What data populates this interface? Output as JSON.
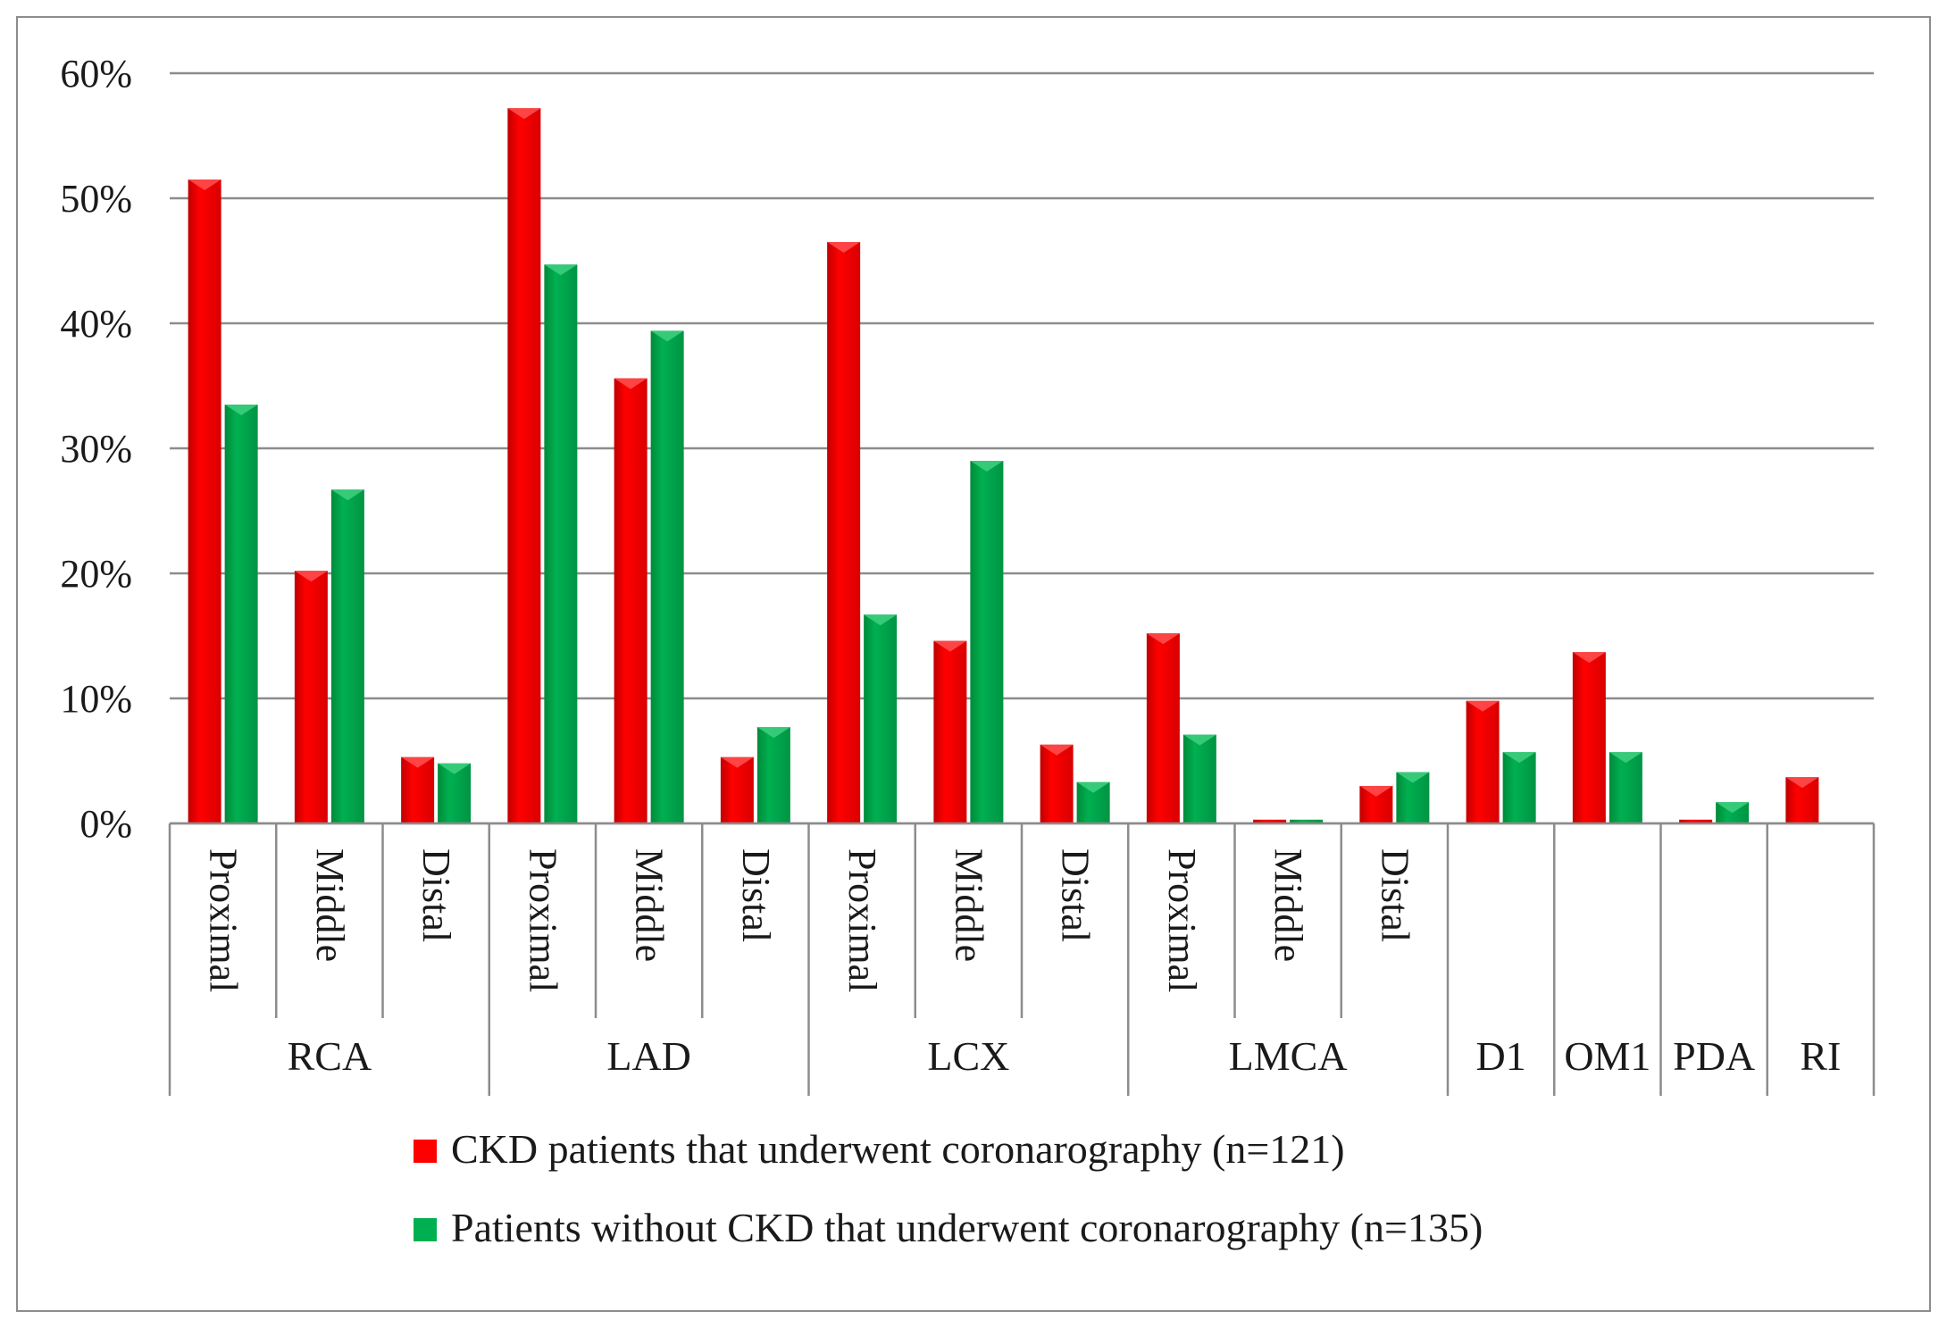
{
  "chart_data": {
    "type": "bar",
    "title": "",
    "xlabel": "",
    "ylabel": "",
    "ylim": [
      0,
      60
    ],
    "yticks": [
      "0%",
      "10%",
      "20%",
      "30%",
      "40%",
      "50%",
      "60%"
    ],
    "grid": true,
    "legend_position": "bottom",
    "groups": [
      {
        "label": "RCA",
        "subcategories": [
          "Proximal",
          "Middle",
          "Distal"
        ]
      },
      {
        "label": "LAD",
        "subcategories": [
          "Proximal",
          "Middle",
          "Distal"
        ]
      },
      {
        "label": "LCX",
        "subcategories": [
          "Proximal",
          "Middle",
          "Distal"
        ]
      },
      {
        "label": "LMCA",
        "subcategories": [
          "Proximal",
          "Middle",
          "Distal"
        ]
      },
      {
        "label": "D1",
        "subcategories": [
          ""
        ]
      },
      {
        "label": "OM1",
        "subcategories": [
          ""
        ]
      },
      {
        "label": "PDA",
        "subcategories": [
          ""
        ]
      },
      {
        "label": "RI",
        "subcategories": [
          ""
        ]
      }
    ],
    "series": [
      {
        "name": "CKD patients that underwent coronarography (n=121)",
        "color": "#ff0000",
        "values": [
          51.5,
          20.2,
          5.3,
          57.2,
          35.6,
          5.3,
          46.5,
          14.6,
          6.3,
          15.2,
          0.3,
          3.0,
          9.8,
          13.7,
          0.3,
          3.7
        ]
      },
      {
        "name": "Patients without CKD that underwent coronarography (n=135)",
        "color": "#00b050",
        "values": [
          33.5,
          26.7,
          4.8,
          44.7,
          39.4,
          7.7,
          16.7,
          29.0,
          3.3,
          7.1,
          0.3,
          4.1,
          5.7,
          5.7,
          1.7,
          null
        ]
      }
    ]
  }
}
